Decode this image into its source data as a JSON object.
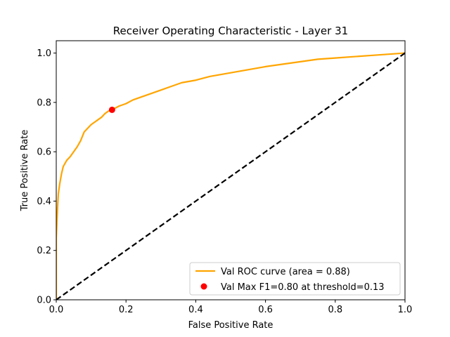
{
  "chart_data": {
    "type": "line",
    "title": "Receiver Operating Characteristic - Layer 31",
    "xlabel": "False Positive Rate",
    "ylabel": "True Positive Rate",
    "xlim": [
      0.0,
      1.0
    ],
    "ylim": [
      0.0,
      1.05
    ],
    "xticks": [
      0.0,
      0.2,
      0.4,
      0.6,
      0.8,
      1.0
    ],
    "yticks": [
      0.0,
      0.2,
      0.4,
      0.6,
      0.8,
      1.0
    ],
    "xtick_labels": [
      "0.0",
      "0.2",
      "0.4",
      "0.6",
      "0.8",
      "1.0"
    ],
    "ytick_labels": [
      "0.0",
      "0.2",
      "0.4",
      "0.6",
      "0.8",
      "1.0"
    ],
    "grid": false,
    "legend_position": "bottom-right",
    "series": [
      {
        "name": "Val ROC curve (area = 0.88)",
        "color": "#FFA500",
        "style": "solid",
        "x": [
          0.0,
          0.0,
          0.002,
          0.004,
          0.006,
          0.01,
          0.015,
          0.02,
          0.03,
          0.04,
          0.05,
          0.06,
          0.07,
          0.08,
          0.09,
          0.1,
          0.11,
          0.12,
          0.13,
          0.14,
          0.15,
          0.16,
          0.18,
          0.2,
          0.22,
          0.24,
          0.26,
          0.28,
          0.3,
          0.33,
          0.36,
          0.4,
          0.44,
          0.48,
          0.52,
          0.56,
          0.6,
          0.65,
          0.7,
          0.75,
          0.8,
          0.85,
          0.9,
          0.95,
          1.0
        ],
        "y": [
          0.0,
          0.25,
          0.32,
          0.38,
          0.43,
          0.47,
          0.51,
          0.54,
          0.565,
          0.58,
          0.6,
          0.62,
          0.645,
          0.68,
          0.695,
          0.71,
          0.72,
          0.73,
          0.74,
          0.755,
          0.765,
          0.77,
          0.785,
          0.795,
          0.81,
          0.82,
          0.83,
          0.84,
          0.85,
          0.865,
          0.88,
          0.89,
          0.905,
          0.915,
          0.925,
          0.935,
          0.945,
          0.955,
          0.965,
          0.975,
          0.98,
          0.985,
          0.99,
          0.995,
          1.0
        ]
      },
      {
        "name": "",
        "color": "#000000",
        "style": "dashed",
        "x": [
          0.0,
          1.0
        ],
        "y": [
          0.0,
          1.0
        ]
      }
    ],
    "points": [
      {
        "name": "Val Max F1=0.80 at threshold=0.13",
        "color": "#FF0000",
        "x": 0.16,
        "y": 0.77
      }
    ]
  }
}
